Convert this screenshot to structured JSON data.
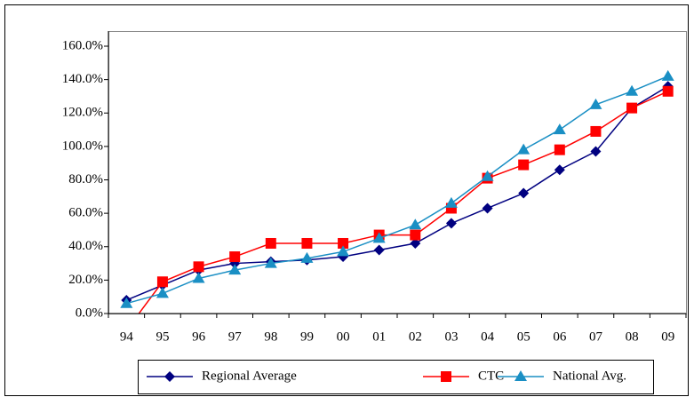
{
  "chart_data": {
    "type": "line",
    "categories": [
      "94",
      "95",
      "96",
      "97",
      "98",
      "99",
      "00",
      "01",
      "02",
      "03",
      "04",
      "05",
      "06",
      "07",
      "08",
      "09"
    ],
    "series": [
      {
        "name": "Regional Average",
        "color": "#000080",
        "marker": "diamond",
        "values": [
          8,
          17,
          26,
          30,
          31,
          32,
          34,
          38,
          42,
          54,
          63,
          72,
          86,
          97,
          123,
          136
        ]
      },
      {
        "name": "CTC",
        "color": "#ff0000",
        "marker": "square",
        "values": [
          -10,
          19,
          28,
          34,
          42,
          42,
          42,
          47,
          47,
          63,
          81,
          89,
          98,
          109,
          123,
          133
        ]
      },
      {
        "name": "National Avg.",
        "color": "#1a8fc4",
        "marker": "triangle",
        "values": [
          6,
          12,
          21,
          26,
          30,
          33,
          37,
          45,
          53,
          66,
          82,
          98,
          110,
          125,
          133,
          142
        ]
      }
    ],
    "ylim": [
      0,
      160
    ],
    "yticks": [
      {
        "value": 0,
        "label": "0.0%"
      },
      {
        "value": 20,
        "label": "20.0%"
      },
      {
        "value": 40,
        "label": "40.0%"
      },
      {
        "value": 60,
        "label": "60.0%"
      },
      {
        "value": 80,
        "label": "80.0%"
      },
      {
        "value": 100,
        "label": "100.0%"
      },
      {
        "value": 120,
        "label": "120.0%"
      },
      {
        "value": 140,
        "label": "140.0%"
      },
      {
        "value": 160,
        "label": "160.0%"
      }
    ],
    "legend": "bottom"
  }
}
